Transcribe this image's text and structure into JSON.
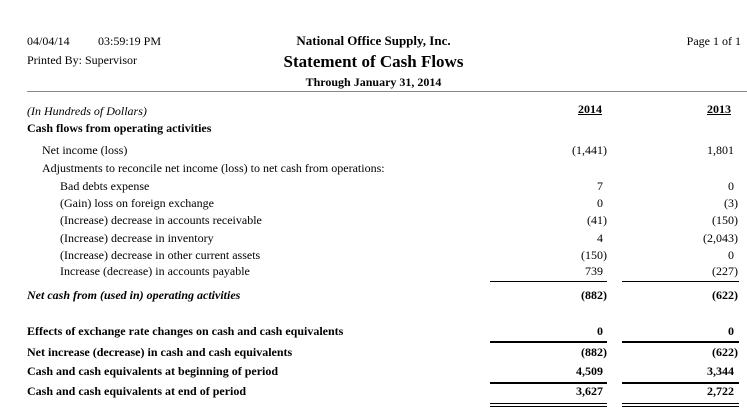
{
  "header": {
    "date": "04/04/14",
    "time": "03:59:19 PM",
    "printed_by": "Printed By: Supervisor",
    "company": "National Office Supply, Inc.",
    "title": "Statement of Cash Flows",
    "period": "Through January 31, 2014",
    "page": "Page 1 of 1"
  },
  "units_note": "(In Hundreds of Dollars)",
  "columns": [
    "2014",
    "2013"
  ],
  "section_title": "Cash flows from operating activities",
  "rows": [
    {
      "label": "Net income (loss)",
      "v2014": "(1,441)",
      "v2013": "1,801"
    },
    {
      "label": "Adjustments to reconcile net income (loss) to net cash from operations:",
      "v2014": "",
      "v2013": ""
    },
    {
      "label": "Bad debts expense",
      "v2014": "7",
      "v2013": "0"
    },
    {
      "label": "(Gain) loss on foreign exchange",
      "v2014": "0",
      "v2013": "(3)"
    },
    {
      "label": "(Increase) decrease in accounts receivable",
      "v2014": "(41)",
      "v2013": "(150)"
    },
    {
      "label": "(Increase) decrease in inventory",
      "v2014": "4",
      "v2013": "(2,043)"
    },
    {
      "label": "(Increase) decrease in other current assets",
      "v2014": "(150)",
      "v2013": "0"
    },
    {
      "label": "Increase (decrease) in accounts payable",
      "v2014": "739",
      "v2013": "(227)"
    }
  ],
  "net_operating": {
    "label": "Net cash from (used in) operating activities",
    "v2014": "(882)",
    "v2013": "(622)"
  },
  "summary": [
    {
      "label": "Effects of exchange rate changes on cash and cash equivalents",
      "v2014": "0",
      "v2013": "0"
    },
    {
      "label": "Net increase (decrease) in cash and cash equivalents",
      "v2014": "(882)",
      "v2013": "(622)"
    },
    {
      "label": "Cash and cash equivalents at beginning of period",
      "v2014": "4,509",
      "v2013": "3,344"
    },
    {
      "label": "Cash and cash equivalents at end of period",
      "v2014": "3,627",
      "v2013": "2,722"
    }
  ]
}
